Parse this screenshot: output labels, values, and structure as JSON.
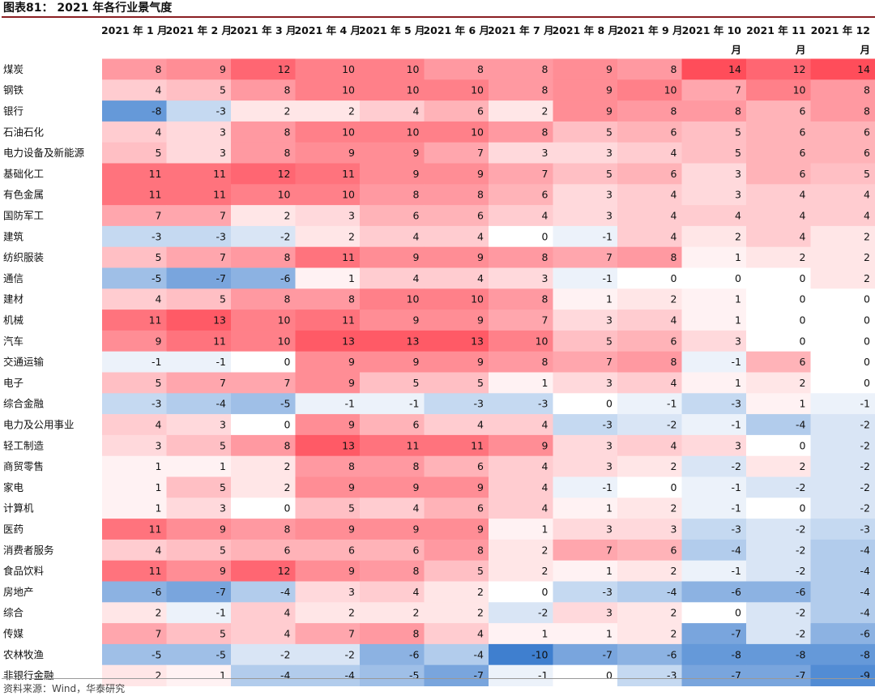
{
  "title": "图表81： 2021 年各行业景气度",
  "source": "资料来源：Wind，华泰研究",
  "colors": {
    "positive": "#ff4d5a",
    "negative": "#3f7fcf",
    "neutral": "#ffffff"
  },
  "chart_data": {
    "type": "heatmap",
    "title": "2021 年各行业景气度",
    "column_labels": [
      {
        "line1": "2021 年 1 月",
        "line2": ""
      },
      {
        "line1": "2021 年 2 月",
        "line2": ""
      },
      {
        "line1": "2021 年 3 月",
        "line2": ""
      },
      {
        "line1": "2021 年 4 月",
        "line2": ""
      },
      {
        "line1": "2021 年 5 月",
        "line2": ""
      },
      {
        "line1": "2021 年 6 月",
        "line2": ""
      },
      {
        "line1": "2021 年 7 月",
        "line2": ""
      },
      {
        "line1": "2021 年 8 月",
        "line2": ""
      },
      {
        "line1": "2021 年 9 月",
        "line2": ""
      },
      {
        "line1": "2021 年 10",
        "line2": "月"
      },
      {
        "line1": "2021 年 11",
        "line2": "月"
      },
      {
        "line1": "2021 年 12",
        "line2": "月"
      }
    ],
    "value_range": [
      -10,
      14
    ],
    "rows": [
      {
        "name": "煤炭",
        "values": [
          8,
          9,
          12,
          10,
          10,
          8,
          8,
          9,
          8,
          14,
          12,
          14
        ]
      },
      {
        "name": "钢铁",
        "values": [
          4,
          5,
          8,
          10,
          10,
          10,
          8,
          9,
          10,
          7,
          10,
          8
        ]
      },
      {
        "name": "银行",
        "values": [
          -8,
          -3,
          2,
          2,
          4,
          6,
          2,
          9,
          8,
          8,
          6,
          8
        ]
      },
      {
        "name": "石油石化",
        "values": [
          4,
          3,
          8,
          10,
          10,
          10,
          8,
          5,
          6,
          5,
          6,
          6
        ]
      },
      {
        "name": "电力设备及新能源",
        "values": [
          5,
          3,
          8,
          9,
          9,
          7,
          3,
          3,
          4,
          5,
          6,
          6
        ]
      },
      {
        "name": "基础化工",
        "values": [
          11,
          11,
          12,
          11,
          9,
          9,
          7,
          5,
          6,
          3,
          6,
          5
        ]
      },
      {
        "name": "有色金属",
        "values": [
          11,
          11,
          10,
          10,
          8,
          8,
          6,
          3,
          4,
          3,
          4,
          4
        ]
      },
      {
        "name": "国防军工",
        "values": [
          7,
          7,
          2,
          3,
          6,
          6,
          4,
          3,
          4,
          4,
          4,
          4
        ]
      },
      {
        "name": "建筑",
        "values": [
          -3,
          -3,
          -2,
          2,
          4,
          4,
          0,
          -1,
          4,
          2,
          4,
          2
        ]
      },
      {
        "name": "纺织服装",
        "values": [
          5,
          7,
          8,
          11,
          9,
          9,
          8,
          7,
          8,
          1,
          2,
          2
        ]
      },
      {
        "name": "通信",
        "values": [
          -5,
          -7,
          -6,
          1,
          4,
          4,
          3,
          -1,
          0,
          0,
          0,
          2
        ]
      },
      {
        "name": "建材",
        "values": [
          4,
          5,
          8,
          8,
          10,
          10,
          8,
          1,
          2,
          1,
          0,
          0
        ]
      },
      {
        "name": "机械",
        "values": [
          11,
          13,
          10,
          11,
          9,
          9,
          7,
          3,
          4,
          1,
          0,
          0
        ]
      },
      {
        "name": "汽车",
        "values": [
          9,
          11,
          10,
          13,
          13,
          13,
          10,
          5,
          6,
          3,
          0,
          0
        ]
      },
      {
        "name": "交通运输",
        "values": [
          -1,
          -1,
          0,
          9,
          9,
          9,
          8,
          7,
          8,
          -1,
          6,
          0
        ]
      },
      {
        "name": "电子",
        "values": [
          5,
          7,
          7,
          9,
          5,
          5,
          1,
          3,
          4,
          1,
          2,
          0
        ]
      },
      {
        "name": "综合金融",
        "values": [
          -3,
          -4,
          -5,
          -1,
          -1,
          -3,
          -3,
          0,
          -1,
          -3,
          1,
          -1
        ]
      },
      {
        "name": "电力及公用事业",
        "values": [
          4,
          3,
          0,
          9,
          6,
          4,
          4,
          -3,
          -2,
          -1,
          -4,
          -2
        ]
      },
      {
        "name": "轻工制造",
        "values": [
          3,
          5,
          8,
          13,
          11,
          11,
          9,
          3,
          4,
          3,
          0,
          -2
        ]
      },
      {
        "name": "商贸零售",
        "values": [
          1,
          1,
          2,
          8,
          8,
          6,
          4,
          3,
          2,
          -2,
          2,
          -2
        ]
      },
      {
        "name": "家电",
        "values": [
          1,
          5,
          2,
          9,
          9,
          9,
          4,
          -1,
          0,
          -1,
          -2,
          -2
        ]
      },
      {
        "name": "计算机",
        "values": [
          1,
          3,
          0,
          5,
          4,
          6,
          4,
          1,
          2,
          -1,
          0,
          -2
        ]
      },
      {
        "name": "医药",
        "values": [
          11,
          9,
          8,
          9,
          9,
          9,
          1,
          3,
          3,
          -3,
          -2,
          -3
        ]
      },
      {
        "name": "消费者服务",
        "values": [
          4,
          5,
          6,
          6,
          6,
          8,
          2,
          7,
          6,
          -4,
          -2,
          -4
        ]
      },
      {
        "name": "食品饮料",
        "values": [
          11,
          9,
          12,
          9,
          8,
          5,
          2,
          1,
          2,
          -1,
          -2,
          -4
        ]
      },
      {
        "name": "房地产",
        "values": [
          -6,
          -7,
          -4,
          3,
          4,
          2,
          0,
          -3,
          -4,
          -6,
          -6,
          -4
        ]
      },
      {
        "name": "综合",
        "values": [
          2,
          -1,
          4,
          2,
          2,
          2,
          -2,
          3,
          2,
          0,
          -2,
          -4
        ]
      },
      {
        "name": "传媒",
        "values": [
          7,
          5,
          4,
          7,
          8,
          4,
          1,
          1,
          2,
          -7,
          -2,
          -6
        ]
      },
      {
        "name": "农林牧渔",
        "values": [
          -5,
          -5,
          -2,
          -2,
          -6,
          -4,
          -10,
          -7,
          -6,
          -8,
          -8,
          -8
        ]
      },
      {
        "name": "非银行金融",
        "values": [
          2,
          1,
          -4,
          -4,
          -5,
          -7,
          -1,
          0,
          -3,
          -7,
          -7,
          -9
        ]
      }
    ]
  }
}
